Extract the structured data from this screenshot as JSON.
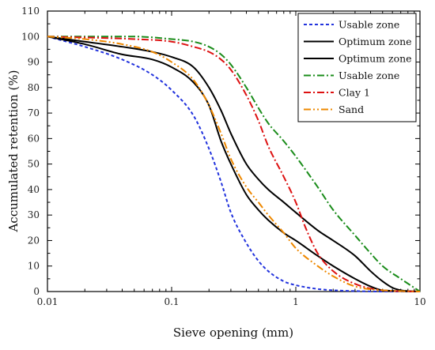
{
  "chart_data": {
    "type": "line",
    "title": "",
    "xlabel": "Sieve opening (mm)",
    "ylabel": "Accumulated retention (%)",
    "x_scale": "log",
    "xlim": [
      0.01,
      10
    ],
    "ylim": [
      0,
      110
    ],
    "x_ticks": [
      {
        "value": 0.01,
        "label": "0.01"
      },
      {
        "value": 0.1,
        "label": "0.1"
      },
      {
        "value": 1,
        "label": "1"
      },
      {
        "value": 10,
        "label": "10"
      }
    ],
    "y_ticks": [
      {
        "value": 0,
        "label": "0"
      },
      {
        "value": 10,
        "label": "10"
      },
      {
        "value": 20,
        "label": "20"
      },
      {
        "value": 30,
        "label": "30"
      },
      {
        "value": 40,
        "label": "40"
      },
      {
        "value": 50,
        "label": "50"
      },
      {
        "value": 60,
        "label": "60"
      },
      {
        "value": 70,
        "label": "70"
      },
      {
        "value": 80,
        "label": "80"
      },
      {
        "value": 90,
        "label": "90"
      },
      {
        "value": 100,
        "label": "100"
      },
      {
        "value": 110,
        "label": "110"
      }
    ],
    "grid": false,
    "legend_position": "top-right",
    "series": [
      {
        "name": "Usable zone",
        "color": "#2233dd",
        "dash": "short-dash",
        "x": [
          0.01,
          0.02,
          0.04,
          0.07,
          0.1,
          0.15,
          0.2,
          0.25,
          0.3,
          0.4,
          0.5,
          0.6,
          0.8,
          1.0,
          1.5,
          2.0,
          3.0,
          5.0,
          10.0
        ],
        "y": [
          100,
          96,
          91,
          85,
          79,
          69,
          56,
          43,
          31,
          19,
          12,
          8,
          4,
          2.5,
          1,
          0.5,
          0.2,
          0,
          0
        ]
      },
      {
        "name": "Optimum zone",
        "color": "#000000",
        "dash": "solid",
        "x": [
          0.01,
          0.02,
          0.04,
          0.07,
          0.1,
          0.15,
          0.2,
          0.25,
          0.3,
          0.4,
          0.5,
          0.6,
          0.8,
          1.0,
          1.5,
          2.0,
          3.0,
          4.0,
          5.0,
          6.0,
          7.0,
          10.0
        ],
        "y": [
          100,
          98,
          96,
          94,
          92,
          88,
          80,
          71,
          62,
          50,
          44,
          40,
          35,
          31,
          24,
          20,
          14,
          8,
          4,
          1.5,
          0.5,
          0
        ]
      },
      {
        "name": "Optimum zone",
        "color": "#000000",
        "dash": "solid",
        "x": [
          0.01,
          0.02,
          0.04,
          0.07,
          0.1,
          0.15,
          0.2,
          0.25,
          0.3,
          0.4,
          0.5,
          0.6,
          0.8,
          1.0,
          1.5,
          2.0,
          3.0,
          4.0,
          5.0,
          10.0
        ],
        "y": [
          100,
          97,
          93,
          91,
          88,
          82,
          73,
          59,
          50,
          38,
          32,
          28,
          23,
          20,
          14,
          10,
          5,
          2,
          0.5,
          0
        ]
      },
      {
        "name": "Usable zone",
        "color": "#1a8c1a",
        "dash": "dash-dot",
        "x": [
          0.01,
          0.05,
          0.1,
          0.15,
          0.2,
          0.25,
          0.3,
          0.4,
          0.5,
          0.6,
          0.8,
          1.0,
          1.5,
          2.0,
          3.0,
          4.0,
          5.0,
          7.0,
          10.0
        ],
        "y": [
          100,
          100,
          99,
          98,
          96,
          93,
          89,
          80,
          72,
          66,
          59,
          53,
          41,
          32,
          22,
          15,
          10,
          5,
          0
        ]
      },
      {
        "name": "Clay 1",
        "color": "#dd1111",
        "dash": "dash-dot",
        "x": [
          0.01,
          0.05,
          0.1,
          0.15,
          0.2,
          0.25,
          0.3,
          0.4,
          0.5,
          0.6,
          0.8,
          1.0,
          1.2,
          1.5,
          2.0,
          3.0,
          5.0,
          10.0
        ],
        "y": [
          100,
          99,
          98,
          96,
          94,
          91,
          87,
          77,
          67,
          57,
          45,
          35,
          25,
          15,
          8,
          3,
          0.5,
          0
        ]
      },
      {
        "name": "Sand",
        "color": "#ee8800",
        "dash": "dash-dot-dot",
        "x": [
          0.01,
          0.02,
          0.04,
          0.07,
          0.1,
          0.15,
          0.2,
          0.25,
          0.3,
          0.4,
          0.5,
          0.6,
          0.8,
          1.0,
          1.5,
          2.0,
          3.0,
          5.0,
          10.0
        ],
        "y": [
          100,
          99,
          97,
          94,
          90,
          83,
          73,
          62,
          52,
          41,
          35,
          30,
          23,
          17,
          10,
          6,
          2,
          0.5,
          0
        ]
      }
    ]
  }
}
